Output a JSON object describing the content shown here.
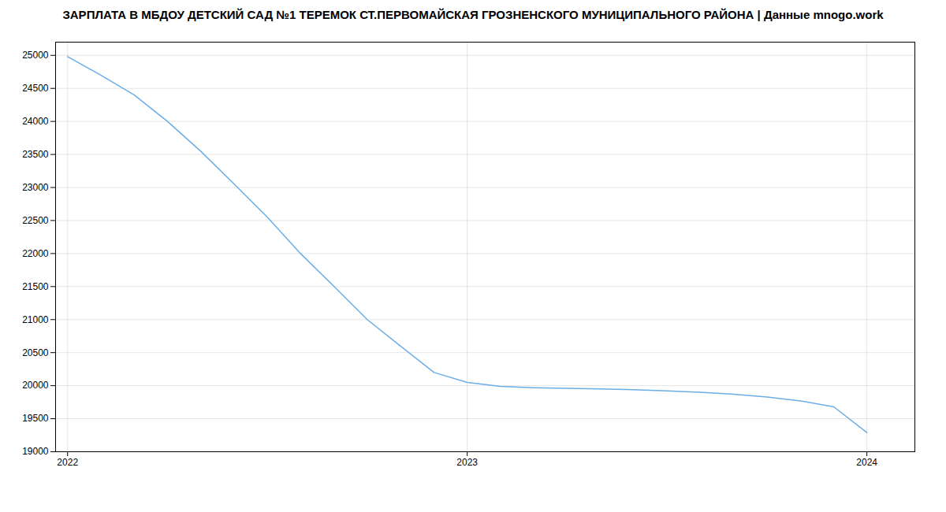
{
  "chart_data": {
    "type": "line",
    "title": "ЗАРПЛАТА В МБДОУ ДЕТСКИЙ САД №1 ТЕРЕМОК СТ.ПЕРВОМАЙСКАЯ ГРОЗНЕНСКОГО МУНИЦИПАЛЬНОГО РАЙОНА | Данные mnogo.work",
    "x": [
      2022.0,
      2022.083,
      2022.167,
      2022.25,
      2022.333,
      2022.417,
      2022.5,
      2022.583,
      2022.667,
      2022.75,
      2022.833,
      2022.917,
      2023.0,
      2023.083,
      2023.167,
      2023.25,
      2023.333,
      2023.417,
      2023.5,
      2023.583,
      2023.667,
      2023.75,
      2023.833,
      2023.917,
      2024.0
    ],
    "values": [
      24980,
      24700,
      24400,
      24000,
      23550,
      23050,
      22550,
      22000,
      21500,
      21000,
      20600,
      20200,
      20050,
      19990,
      19970,
      19960,
      19950,
      19940,
      19920,
      19900,
      19870,
      19830,
      19770,
      19680,
      19290
    ],
    "color": "#6aaee8",
    "xlim": [
      2021.97,
      2024.12
    ],
    "ylim": [
      19000,
      25200
    ],
    "xticks": [
      2022,
      2023,
      2024
    ],
    "yticks": [
      19000,
      19500,
      20000,
      20500,
      21000,
      21500,
      22000,
      22500,
      23000,
      23500,
      24000,
      24500,
      25000
    ],
    "grid": true
  }
}
